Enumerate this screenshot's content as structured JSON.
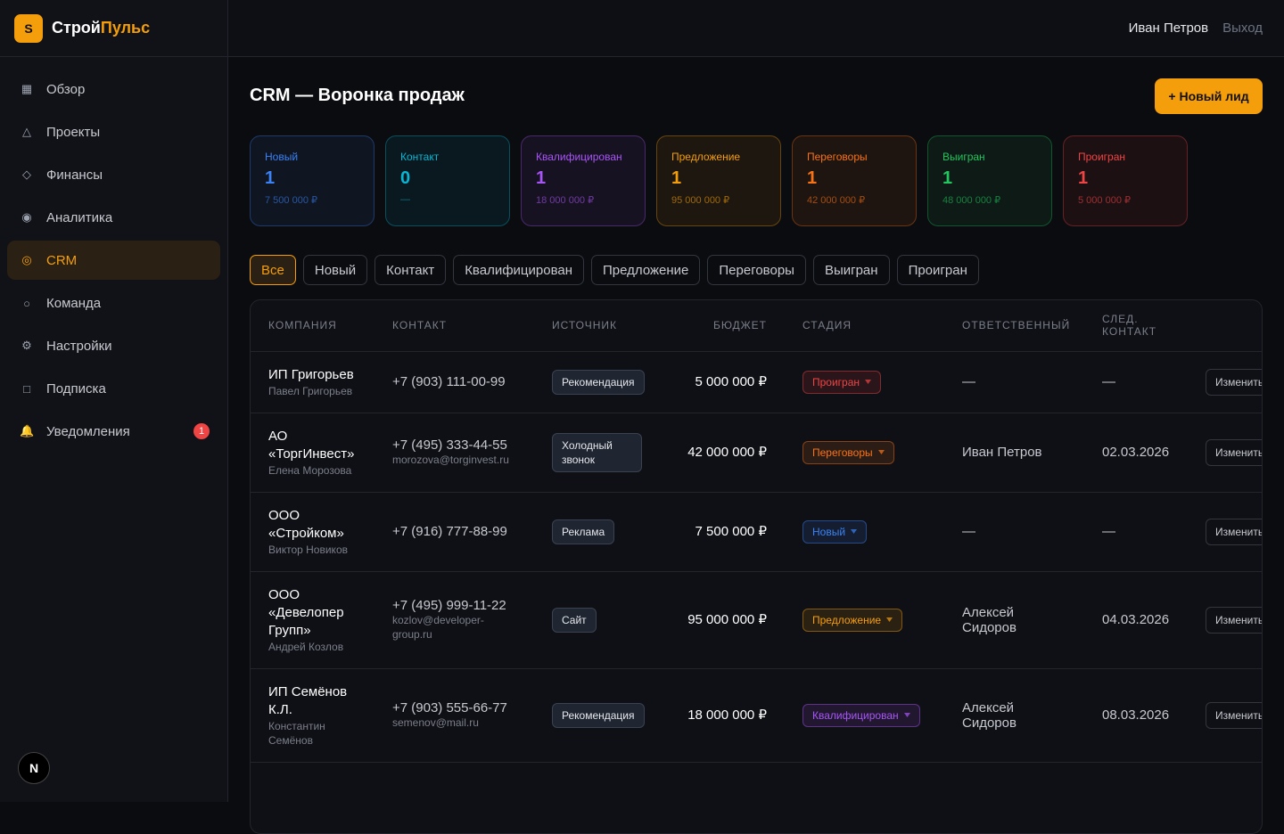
{
  "brand": {
    "logo": "S",
    "name": "Строй",
    "accent": "Пульс"
  },
  "nav": [
    {
      "icon": "▦",
      "label": "Обзор"
    },
    {
      "icon": "△",
      "label": "Проекты"
    },
    {
      "icon": "◇",
      "label": "Финансы"
    },
    {
      "icon": "◉",
      "label": "Аналитика"
    },
    {
      "icon": "◎",
      "label": "CRM",
      "active": true
    },
    {
      "icon": "○",
      "label": "Команда"
    },
    {
      "icon": "⚙",
      "label": "Настройки"
    },
    {
      "icon": "□",
      "label": "Подписка"
    },
    {
      "icon": "🔔",
      "label": "Уведомления",
      "badge": 1
    }
  ],
  "footer_logo": "N",
  "header": {
    "user": "Иван Петров",
    "logout": "Выход"
  },
  "page": {
    "title": "CRM — Воронка продаж",
    "button": "+ Новый лид"
  },
  "stages": [
    {
      "name": "Новый",
      "count": 1,
      "amount": "7 500 000 ₽",
      "color": "#3b82f6"
    },
    {
      "name": "Контакт",
      "count": 0,
      "amount": "—",
      "color": "#06b6d4"
    },
    {
      "name": "Квалифицирован",
      "count": 1,
      "amount": "18 000 000 ₽",
      "color": "#a855f7"
    },
    {
      "name": "Предложение",
      "count": 1,
      "amount": "95 000 000 ₽",
      "color": "#f59e0b"
    },
    {
      "name": "Переговоры",
      "count": 1,
      "amount": "42 000 000 ₽",
      "color": "#f97316"
    },
    {
      "name": "Выигран",
      "count": 1,
      "amount": "48 000 000 ₽",
      "color": "#22c55e"
    },
    {
      "name": "Проигран",
      "count": 1,
      "amount": "5 000 000 ₽",
      "color": "#ef4444"
    }
  ],
  "filters": {
    "items": [
      "Все",
      "Новый",
      "Контакт",
      "Квалифицирован",
      "Предложение",
      "Переговоры",
      "Выигран",
      "Проигран"
    ],
    "active": 0
  },
  "table": {
    "columns": [
      "КОМПАНИЯ",
      "КОНТАКТ",
      "ИСТОЧНИК",
      "БЮДЖЕТ",
      "СТАДИЯ",
      "ОТВЕТСТВЕННЫЙ",
      "СЛЕД. КОНТАКТ"
    ],
    "rows": [
      {
        "company": "ИП Григорьев",
        "person": "Павел Григорьев",
        "phone": "+7 (903) 111-00-99",
        "source": "Рекомендация",
        "budget": "5 000 000 ₽",
        "stage": "Проигран",
        "owner": "—",
        "next": "—",
        "action": "Изменить"
      },
      {
        "company": "АО «ТоргИнвест»",
        "person": "Елена Морозова",
        "phone": "+7 (495) 333-44-55",
        "email": "morozova@torginvest.ru",
        "source": "Холодный звонок",
        "budget": "42 000 000 ₽",
        "stage": "Переговоры",
        "owner": "Иван Петров",
        "next": "02.03.2026",
        "action": "Изменить"
      },
      {
        "company": "ООО «Стройком»",
        "person": "Виктор Новиков",
        "phone": "+7 (916) 777-88-99",
        "source": "Реклама",
        "budget": "7 500 000 ₽",
        "stage": "Новый",
        "owner": "—",
        "next": "—",
        "action": "Изменить"
      },
      {
        "company": "ООО «Девелопер Групп»",
        "person": "Андрей Козлов",
        "phone": "+7 (495) 999-11-22",
        "email": "kozlov@developer-group.ru",
        "source": "Сайт",
        "budget": "95 000 000 ₽",
        "stage": "Предложение",
        "owner": "Алексей Сидоров",
        "next": "04.03.2026",
        "action": "Изменить"
      },
      {
        "company": "ИП Семёнов К.Л.",
        "person": "Константин Семёнов",
        "phone": "+7 (903) 555-66-77",
        "email": "semenov@mail.ru",
        "source": "Рекомендация",
        "budget": "18 000 000 ₽",
        "stage": "Квалифицирован",
        "owner": "Алексей Сидоров",
        "next": "08.03.2026",
        "action": "Изменить"
      }
    ]
  }
}
